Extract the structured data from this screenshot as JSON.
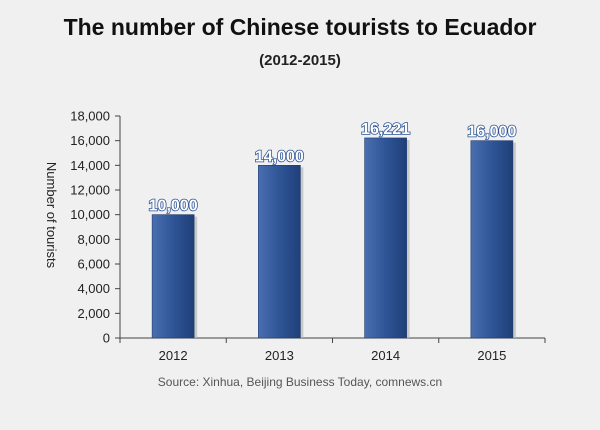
{
  "chart_data": {
    "type": "bar",
    "title": "The number of Chinese tourists to Ecuador",
    "subtitle": "(2012-2015)",
    "xlabel": "",
    "ylabel": "Number of tourists",
    "categories": [
      "2012",
      "2013",
      "2014",
      "2015"
    ],
    "values": [
      10000,
      14000,
      16221,
      16000
    ],
    "data_labels": [
      "10,000",
      "14,000",
      "16,221",
      "16,000"
    ],
    "ylim": [
      0,
      18000
    ],
    "yticks": [
      0,
      2000,
      4000,
      6000,
      8000,
      10000,
      12000,
      14000,
      16000,
      18000
    ],
    "ytick_labels": [
      "0",
      "2,000",
      "4,000",
      "6,000",
      "8,000",
      "10,000",
      "12,000",
      "14,000",
      "16,000",
      "18,000"
    ],
    "grid": false,
    "bar_color": "#2f5597",
    "source": "Source: Xinhua, Beijing Business Today, comnews.cn"
  }
}
